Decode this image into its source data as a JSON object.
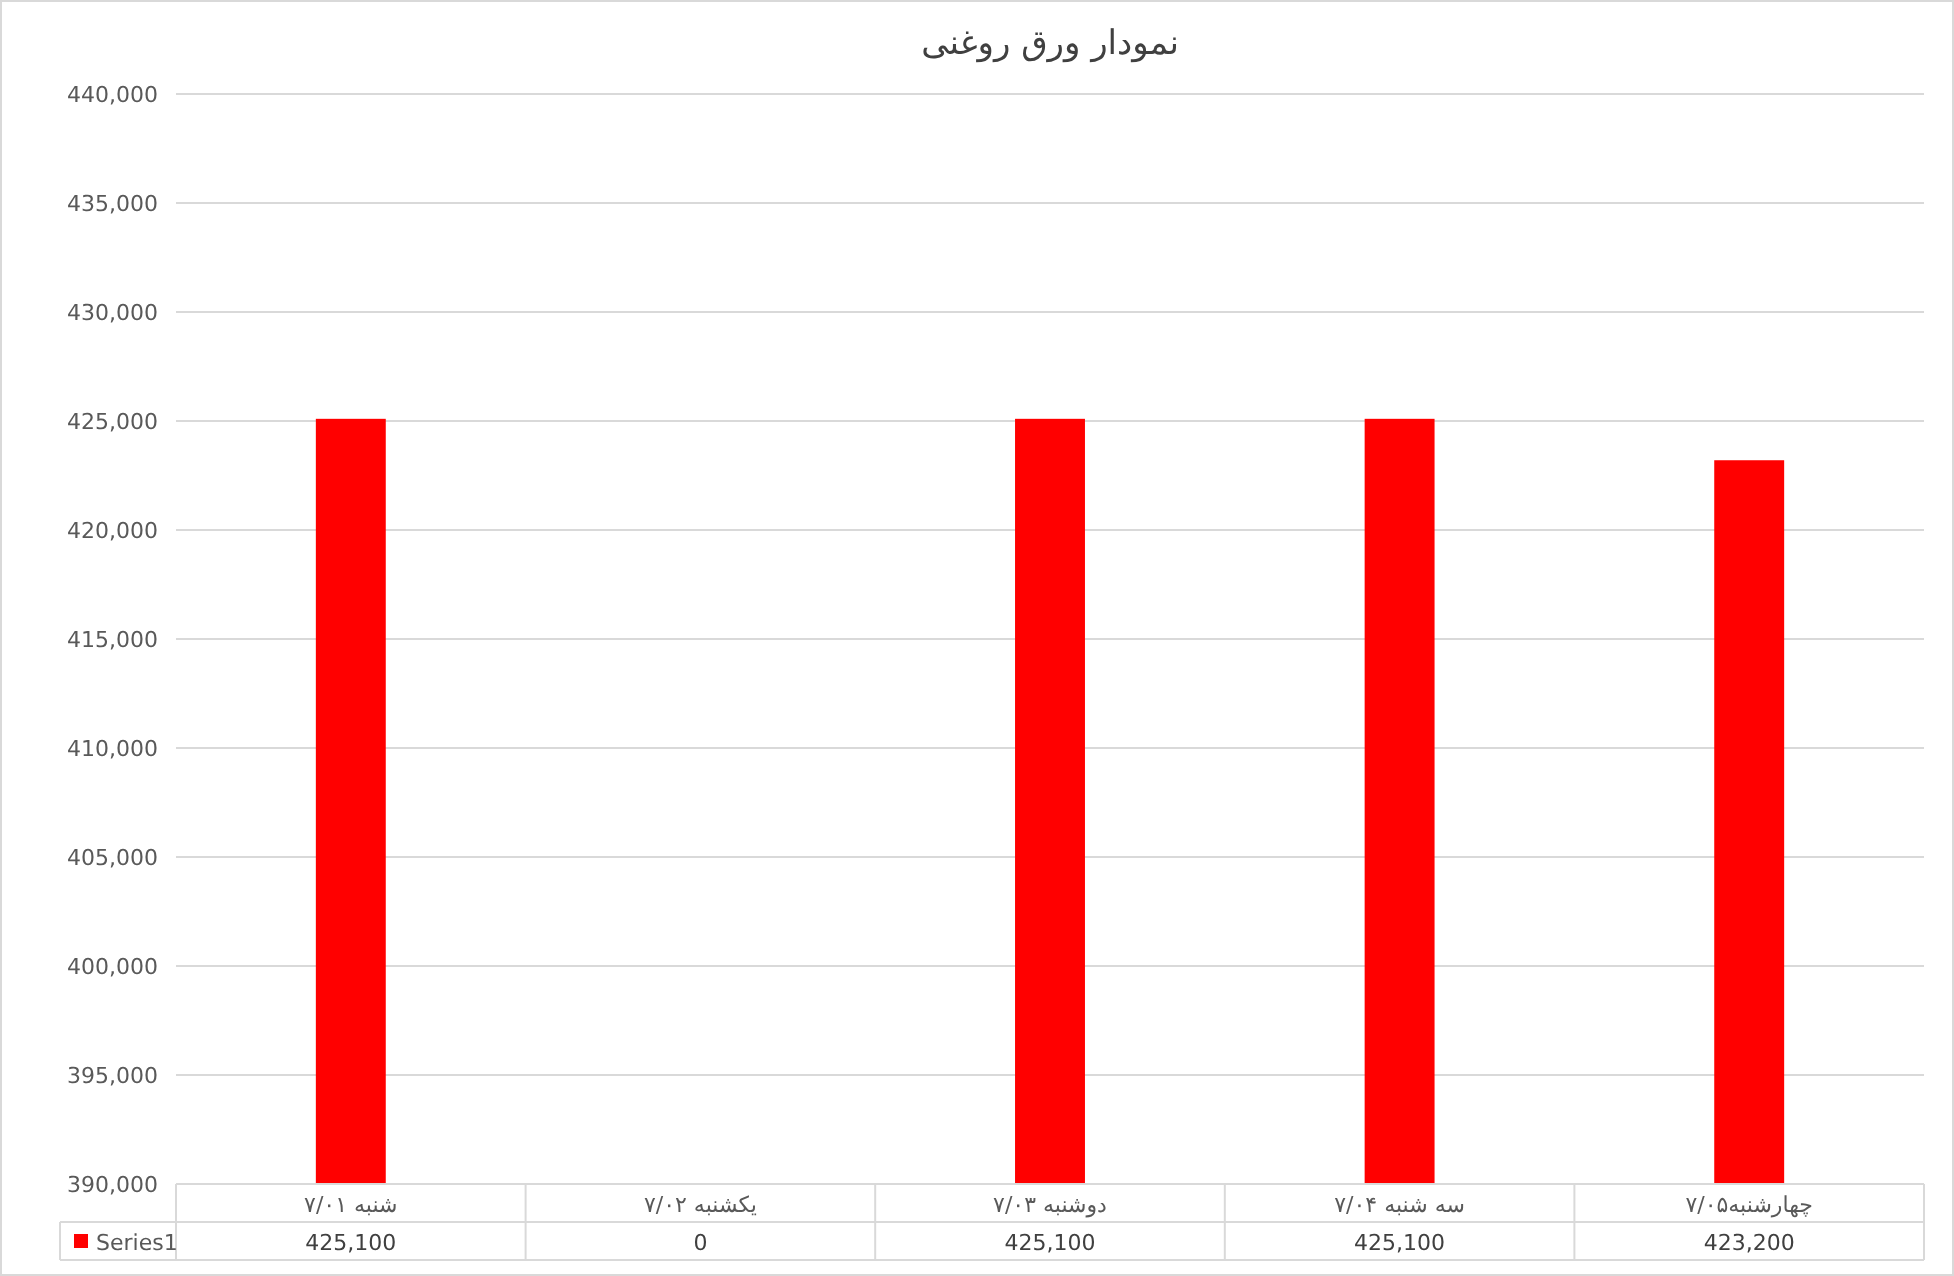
{
  "chart_data": {
    "type": "bar",
    "title": "نمودار ورق روغنی",
    "categories": [
      "شنبه ۷/۰۱",
      "یکشنبه ۷/۰۲",
      "دوشنبه ۷/۰۳",
      "سه شنبه ۷/۰۴",
      "چهارشنبه۷/۰۵"
    ],
    "series": [
      {
        "name": "Series1",
        "color": "#ff0000",
        "values": [
          425100,
          null,
          425100,
          425100,
          423200
        ],
        "value_labels": [
          "425,100",
          "0",
          "425,100",
          "425,100",
          "423,200"
        ]
      }
    ],
    "ylim": [
      390000,
      440000
    ],
    "yticks": [
      {
        "value": 390000,
        "label": "390,000"
      },
      {
        "value": 395000,
        "label": "395,000"
      },
      {
        "value": 400000,
        "label": "400,000"
      },
      {
        "value": 405000,
        "label": "405,000"
      },
      {
        "value": 410000,
        "label": "410,000"
      },
      {
        "value": 415000,
        "label": "415,000"
      },
      {
        "value": 420000,
        "label": "420,000"
      },
      {
        "value": 425000,
        "label": "425,000"
      },
      {
        "value": 430000,
        "label": "430,000"
      },
      {
        "value": 435000,
        "label": "435,000"
      },
      {
        "value": 440000,
        "label": "440,000"
      }
    ],
    "grid": "y",
    "legend": "bottom"
  }
}
